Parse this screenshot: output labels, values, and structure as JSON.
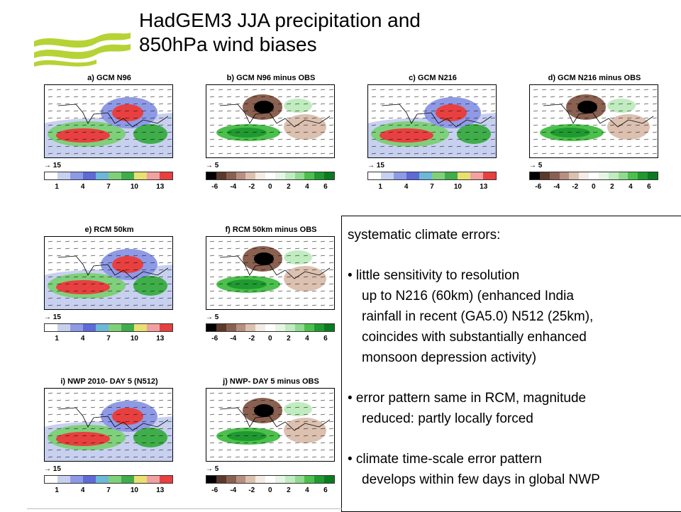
{
  "slide": {
    "title_line1": "HadGEM3 JJA precipitation and",
    "title_line2": "850hPa wind biases"
  },
  "panels": [
    {
      "title": "a) GCM N96",
      "kind": "abs",
      "ref": "15",
      "ticks": [
        "1",
        "4",
        "7",
        "10",
        "13"
      ]
    },
    {
      "title": "b) GCM N96 minus OBS",
      "kind": "diff",
      "ref": "5",
      "ticks": [
        "-6",
        "-4",
        "-2",
        "0",
        "2",
        "4",
        "6"
      ]
    },
    {
      "title": "c) GCM N216",
      "kind": "abs",
      "ref": "15",
      "ticks": [
        "1",
        "4",
        "7",
        "10",
        "13"
      ]
    },
    {
      "title": "d) GCM N216 minus OBS",
      "kind": "diff",
      "ref": "5",
      "ticks": [
        "-6",
        "-4",
        "-2",
        "0",
        "2",
        "4",
        "6"
      ]
    },
    {
      "title": "e) RCM 50km",
      "kind": "abs",
      "ref": "15",
      "ticks": [
        "1",
        "4",
        "7",
        "10",
        "13"
      ]
    },
    {
      "title": "f) RCM 50km minus OBS",
      "kind": "diff",
      "ref": "5",
      "ticks": [
        "-6",
        "-4",
        "-2",
        "0",
        "2",
        "4",
        "6"
      ]
    },
    {
      "title": "i) NWP 2010- DAY 5 (N512)",
      "kind": "abs",
      "ref": "15",
      "ticks": [
        "1",
        "4",
        "7",
        "10",
        "13"
      ]
    },
    {
      "title": "j) NWP- DAY 5 minus OBS",
      "kind": "diff",
      "ref": "5",
      "ticks": [
        "-6",
        "-4",
        "-2",
        "0",
        "2",
        "4",
        "6"
      ]
    }
  ],
  "colors": {
    "abs_scale": [
      "#ffffff",
      "#c8d0f0",
      "#8f9ae6",
      "#5d6ad8",
      "#6cb8d8",
      "#7fd07a",
      "#3fae4a",
      "#e8e070",
      "#f2a0a0",
      "#e84040"
    ],
    "diff_scale": [
      "#000000",
      "#5a3a2a",
      "#8a6050",
      "#b89080",
      "#dcc0b0",
      "#f4ece6",
      "#ffffff",
      "#e6f6e6",
      "#c0ecc0",
      "#8edc8e",
      "#4cc04c",
      "#209a30",
      "#0b7a20"
    ],
    "logo": "#b5d334"
  },
  "text_box": {
    "heading": "systematic climate errors:",
    "b1_l1": "• little sensitivity to resolution",
    "b1_l2": "up to N216 (60km) (enhanced India",
    "b1_l3": "rainfall in recent (GA5.0) N512 (25km),",
    "b1_l4": "coincides with substantially enhanced",
    "b1_l5": "monsoon depression activity)",
    "b2_l1": "• error pattern same in RCM, magnitude",
    "b2_l2": "reduced: partly locally forced",
    "b3_l1": "• climate time-scale error pattern",
    "b3_l2": "develops within few days in global NWP"
  }
}
